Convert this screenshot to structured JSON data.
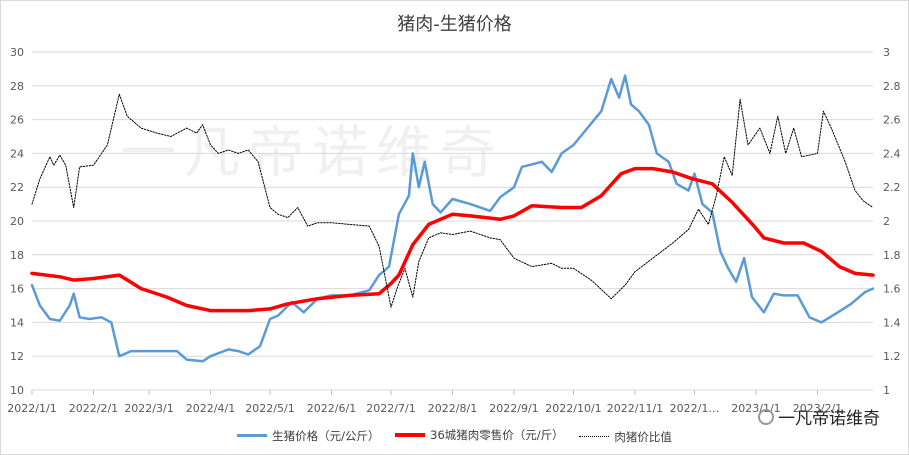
{
  "chart_data": {
    "type": "line",
    "title": "猪肉-生猪价格",
    "x_tick_labels": [
      "2022/1/1",
      "2022/2/1",
      "2022/3/1",
      "2022/4/1",
      "2022/5/1",
      "2022/6/1",
      "2022/7/1",
      "2022/8/1",
      "2022/9/1",
      "2022/10/1",
      "2022/11/1",
      "2022/12/1",
      "2023/1/1",
      "2023/2/1"
    ],
    "x_tick_labels_display": [
      "2022/1/1",
      "2022/2/1",
      "2022/3/1",
      "2022/4/1",
      "2022/5/1",
      "2022/6/1",
      "2022/7/1",
      "2022/8/1",
      "2022/9/1",
      "2022/10/1",
      "2022/11/1",
      "2022/1…",
      "2023/1/1",
      "2023/2/1"
    ],
    "y_left": {
      "min": 10,
      "max": 30,
      "step": 2
    },
    "y_right": {
      "min": 1,
      "max": 3,
      "step": 0.2
    },
    "series": [
      {
        "name": "生猪价格（元/公斤）",
        "axis": "left",
        "color": "#5b9bd5",
        "style": "solid",
        "points": [
          [
            "2022/1/1",
            16.2
          ],
          [
            "2022/1/5",
            15.0
          ],
          [
            "2022/1/10",
            14.2
          ],
          [
            "2022/1/15",
            14.1
          ],
          [
            "2022/1/20",
            15.0
          ],
          [
            "2022/1/22",
            15.7
          ],
          [
            "2022/1/25",
            14.3
          ],
          [
            "2022/1/30",
            14.2
          ],
          [
            "2022/2/5",
            14.3
          ],
          [
            "2022/2/10",
            14.0
          ],
          [
            "2022/2/14",
            12.0
          ],
          [
            "2022/2/20",
            12.3
          ],
          [
            "2022/2/28",
            12.3
          ],
          [
            "2022/3/10",
            12.3
          ],
          [
            "2022/3/15",
            12.3
          ],
          [
            "2022/3/20",
            11.8
          ],
          [
            "2022/3/28",
            11.7
          ],
          [
            "2022/4/1",
            12.0
          ],
          [
            "2022/4/10",
            12.4
          ],
          [
            "2022/4/15",
            12.3
          ],
          [
            "2022/4/20",
            12.1
          ],
          [
            "2022/4/26",
            12.6
          ],
          [
            "2022/5/1",
            14.2
          ],
          [
            "2022/5/5",
            14.4
          ],
          [
            "2022/5/12",
            15.2
          ],
          [
            "2022/5/18",
            14.6
          ],
          [
            "2022/5/25",
            15.4
          ],
          [
            "2022/6/1",
            15.6
          ],
          [
            "2022/6/10",
            15.6
          ],
          [
            "2022/6/20",
            15.9
          ],
          [
            "2022/6/25",
            16.8
          ],
          [
            "2022/6/30",
            17.3
          ],
          [
            "2022/7/5",
            20.4
          ],
          [
            "2022/7/10",
            21.5
          ],
          [
            "2022/7/12",
            24.0
          ],
          [
            "2022/7/15",
            22.0
          ],
          [
            "2022/7/18",
            23.5
          ],
          [
            "2022/7/22",
            21.0
          ],
          [
            "2022/7/26",
            20.5
          ],
          [
            "2022/8/1",
            21.3
          ],
          [
            "2022/8/10",
            21.0
          ],
          [
            "2022/8/20",
            20.6
          ],
          [
            "2022/8/25",
            21.4
          ],
          [
            "2022/9/1",
            22.0
          ],
          [
            "2022/9/5",
            23.2
          ],
          [
            "2022/9/15",
            23.5
          ],
          [
            "2022/9/20",
            22.9
          ],
          [
            "2022/9/25",
            24.0
          ],
          [
            "2022/10/1",
            24.5
          ],
          [
            "2022/10/8",
            25.5
          ],
          [
            "2022/10/15",
            26.5
          ],
          [
            "2022/10/20",
            28.4
          ],
          [
            "2022/10/24",
            27.3
          ],
          [
            "2022/10/27",
            28.6
          ],
          [
            "2022/10/30",
            26.9
          ],
          [
            "2022/11/3",
            26.5
          ],
          [
            "2022/11/8",
            25.7
          ],
          [
            "2022/11/12",
            24.0
          ],
          [
            "2022/11/18",
            23.5
          ],
          [
            "2022/11/22",
            22.2
          ],
          [
            "2022/11/28",
            21.8
          ],
          [
            "2022/12/1",
            22.8
          ],
          [
            "2022/12/5",
            21.0
          ],
          [
            "2022/12/10",
            20.5
          ],
          [
            "2022/12/14",
            18.2
          ],
          [
            "2022/12/18",
            17.2
          ],
          [
            "2022/12/22",
            16.4
          ],
          [
            "2022/12/26",
            17.8
          ],
          [
            "2022/12/30",
            15.5
          ],
          [
            "2023/1/5",
            14.6
          ],
          [
            "2023/1/10",
            15.7
          ],
          [
            "2023/1/15",
            15.6
          ],
          [
            "2023/1/22",
            15.6
          ],
          [
            "2023/1/28",
            14.3
          ],
          [
            "2023/2/3",
            14.0
          ],
          [
            "2023/2/10",
            14.5
          ],
          [
            "2023/2/18",
            15.1
          ],
          [
            "2023/2/25",
            15.8
          ],
          [
            "2023/3/1",
            16.0
          ]
        ]
      },
      {
        "name": "36城猪肉零售价（元/斤）",
        "axis": "left",
        "color": "#ff0000",
        "style": "solid",
        "points": [
          [
            "2022/1/1",
            16.9
          ],
          [
            "2022/1/15",
            16.7
          ],
          [
            "2022/1/22",
            16.5
          ],
          [
            "2022/2/1",
            16.6
          ],
          [
            "2022/2/14",
            16.8
          ],
          [
            "2022/2/25",
            16.0
          ],
          [
            "2022/3/10",
            15.5
          ],
          [
            "2022/3/20",
            15.0
          ],
          [
            "2022/4/1",
            14.7
          ],
          [
            "2022/4/20",
            14.7
          ],
          [
            "2022/5/1",
            14.8
          ],
          [
            "2022/5/10",
            15.1
          ],
          [
            "2022/5/25",
            15.4
          ],
          [
            "2022/6/10",
            15.6
          ],
          [
            "2022/6/25",
            15.7
          ],
          [
            "2022/7/1",
            16.3
          ],
          [
            "2022/7/5",
            16.8
          ],
          [
            "2022/7/12",
            18.6
          ],
          [
            "2022/7/20",
            19.8
          ],
          [
            "2022/8/1",
            20.4
          ],
          [
            "2022/8/10",
            20.3
          ],
          [
            "2022/8/25",
            20.1
          ],
          [
            "2022/9/1",
            20.3
          ],
          [
            "2022/9/10",
            20.9
          ],
          [
            "2022/9/25",
            20.8
          ],
          [
            "2022/10/5",
            20.8
          ],
          [
            "2022/10/15",
            21.5
          ],
          [
            "2022/10/25",
            22.8
          ],
          [
            "2022/11/1",
            23.1
          ],
          [
            "2022/11/10",
            23.1
          ],
          [
            "2022/11/20",
            22.9
          ],
          [
            "2022/11/30",
            22.5
          ],
          [
            "2022/12/10",
            22.2
          ],
          [
            "2022/12/20",
            21.1
          ],
          [
            "2022/12/31",
            19.7
          ],
          [
            "2023/1/5",
            19.0
          ],
          [
            "2023/1/15",
            18.7
          ],
          [
            "2023/1/25",
            18.7
          ],
          [
            "2023/2/3",
            18.2
          ],
          [
            "2023/2/12",
            17.3
          ],
          [
            "2023/2/20",
            16.9
          ],
          [
            "2023/3/1",
            16.8
          ]
        ]
      },
      {
        "name": "肉猪价比值",
        "axis": "right",
        "color": "#000000",
        "style": "dotted",
        "points": [
          [
            "2022/1/1",
            2.1
          ],
          [
            "2022/1/5",
            2.25
          ],
          [
            "2022/1/10",
            2.38
          ],
          [
            "2022/1/12",
            2.33
          ],
          [
            "2022/1/15",
            2.39
          ],
          [
            "2022/1/18",
            2.33
          ],
          [
            "2022/1/22",
            2.08
          ],
          [
            "2022/1/25",
            2.32
          ],
          [
            "2022/2/1",
            2.33
          ],
          [
            "2022/2/8",
            2.45
          ],
          [
            "2022/2/14",
            2.75
          ],
          [
            "2022/2/18",
            2.62
          ],
          [
            "2022/2/25",
            2.55
          ],
          [
            "2022/3/5",
            2.52
          ],
          [
            "2022/3/12",
            2.5
          ],
          [
            "2022/3/20",
            2.55
          ],
          [
            "2022/3/25",
            2.52
          ],
          [
            "2022/3/28",
            2.57
          ],
          [
            "2022/4/1",
            2.45
          ],
          [
            "2022/4/5",
            2.4
          ],
          [
            "2022/4/10",
            2.42
          ],
          [
            "2022/4/15",
            2.4
          ],
          [
            "2022/4/20",
            2.42
          ],
          [
            "2022/4/25",
            2.35
          ],
          [
            "2022/5/1",
            2.08
          ],
          [
            "2022/5/5",
            2.04
          ],
          [
            "2022/5/10",
            2.02
          ],
          [
            "2022/5/15",
            2.08
          ],
          [
            "2022/5/20",
            1.97
          ],
          [
            "2022/5/25",
            1.99
          ],
          [
            "2022/6/1",
            1.99
          ],
          [
            "2022/6/10",
            1.98
          ],
          [
            "2022/6/20",
            1.97
          ],
          [
            "2022/6/25",
            1.85
          ],
          [
            "2022/7/1",
            1.49
          ],
          [
            "2022/7/4",
            1.6
          ],
          [
            "2022/7/8",
            1.72
          ],
          [
            "2022/7/12",
            1.55
          ],
          [
            "2022/7/15",
            1.76
          ],
          [
            "2022/7/20",
            1.9
          ],
          [
            "2022/7/26",
            1.93
          ],
          [
            "2022/8/1",
            1.92
          ],
          [
            "2022/8/10",
            1.94
          ],
          [
            "2022/8/20",
            1.9
          ],
          [
            "2022/8/25",
            1.89
          ],
          [
            "2022/9/1",
            1.78
          ],
          [
            "2022/9/10",
            1.73
          ],
          [
            "2022/9/20",
            1.75
          ],
          [
            "2022/9/25",
            1.72
          ],
          [
            "2022/10/1",
            1.72
          ],
          [
            "2022/10/10",
            1.65
          ],
          [
            "2022/10/20",
            1.54
          ],
          [
            "2022/10/27",
            1.62
          ],
          [
            "2022/11/1",
            1.7
          ],
          [
            "2022/11/10",
            1.78
          ],
          [
            "2022/11/20",
            1.87
          ],
          [
            "2022/11/28",
            1.95
          ],
          [
            "2022/12/3",
            2.07
          ],
          [
            "2022/12/8",
            1.98
          ],
          [
            "2022/12/12",
            2.15
          ],
          [
            "2022/12/16",
            2.38
          ],
          [
            "2022/12/20",
            2.27
          ],
          [
            "2022/12/24",
            2.72
          ],
          [
            "2022/12/28",
            2.45
          ],
          [
            "2023/1/3",
            2.55
          ],
          [
            "2023/1/8",
            2.4
          ],
          [
            "2023/1/12",
            2.62
          ],
          [
            "2023/1/16",
            2.4
          ],
          [
            "2023/1/20",
            2.55
          ],
          [
            "2023/1/24",
            2.38
          ],
          [
            "2023/2/1",
            2.4
          ],
          [
            "2023/2/4",
            2.65
          ],
          [
            "2023/2/8",
            2.55
          ],
          [
            "2023/2/15",
            2.35
          ],
          [
            "2023/2/20",
            2.18
          ],
          [
            "2023/2/24",
            2.12
          ],
          [
            "2023/3/1",
            2.08
          ]
        ]
      }
    ],
    "grid": "horizontal",
    "legend_position": "bottom"
  },
  "legend": {
    "pig": "生猪价格（元/公斤）",
    "pork": "36城猪肉零售价（元/斤）",
    "ratio": "肉猪价比值"
  },
  "watermark_text": "一凡帝诺维奇",
  "background_watermark": "一凡帝诺维奇"
}
